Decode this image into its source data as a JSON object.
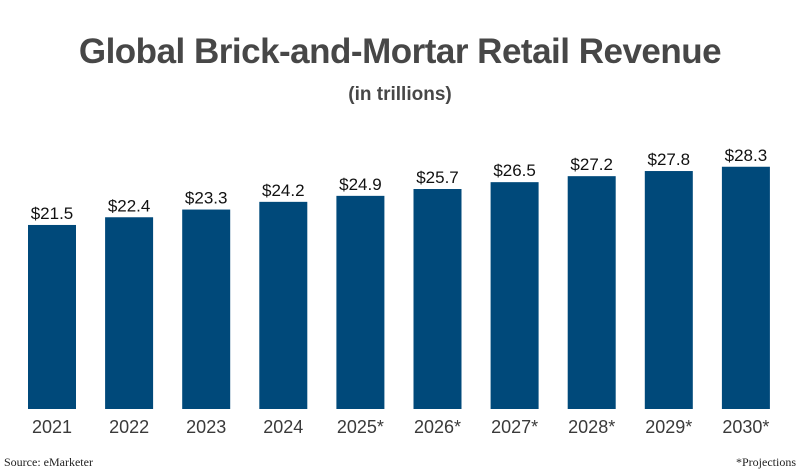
{
  "chart_data": {
    "type": "bar",
    "title": "Global Brick-and-Mortar Retail Revenue",
    "subtitle": "(in trillions)",
    "xlabel": "",
    "ylabel": "",
    "categories": [
      "2021",
      "2022",
      "2023",
      "2024",
      "2025*",
      "2026*",
      "2027*",
      "2028*",
      "2029*",
      "2030*"
    ],
    "values": [
      21.5,
      22.4,
      23.3,
      24.2,
      24.9,
      25.7,
      26.5,
      27.2,
      27.8,
      28.3
    ],
    "data_labels": [
      "$21.5",
      "$22.4",
      "$23.3",
      "$24.2",
      "$24.9",
      "$25.7",
      "$26.5",
      "$27.2",
      "$27.8",
      "$28.3"
    ],
    "ylim": [
      0,
      28.3
    ],
    "grid": false,
    "bar_color": "#00497a",
    "source": "Source: eMarketer",
    "note": "*Projections"
  }
}
